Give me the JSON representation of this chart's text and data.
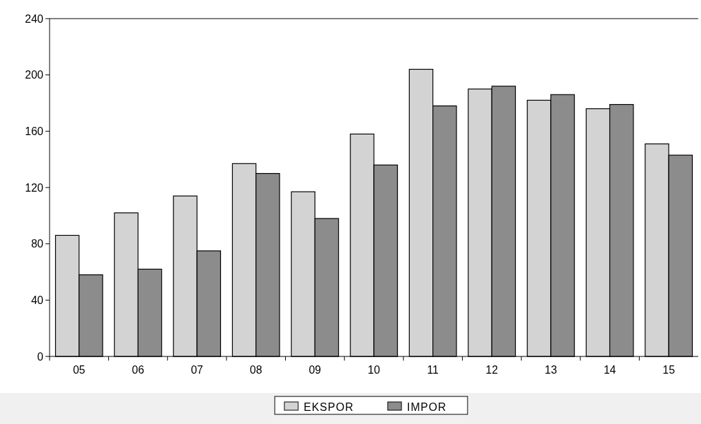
{
  "chart_data": {
    "type": "bar",
    "categories": [
      "05",
      "06",
      "07",
      "08",
      "09",
      "10",
      "11",
      "12",
      "13",
      "14",
      "15"
    ],
    "series": [
      {
        "name": "EKSPOR",
        "color": "#d3d3d3",
        "values": [
          86,
          102,
          114,
          137,
          117,
          158,
          204,
          190,
          182,
          176,
          151
        ]
      },
      {
        "name": "IMPOR",
        "color": "#8c8c8c",
        "values": [
          58,
          62,
          75,
          130,
          98,
          136,
          178,
          192,
          186,
          179,
          143
        ]
      }
    ],
    "ylim": [
      0,
      240
    ],
    "yticks": [
      0,
      40,
      80,
      120,
      160,
      200,
      240
    ],
    "grid": false,
    "legend": "bottom"
  }
}
